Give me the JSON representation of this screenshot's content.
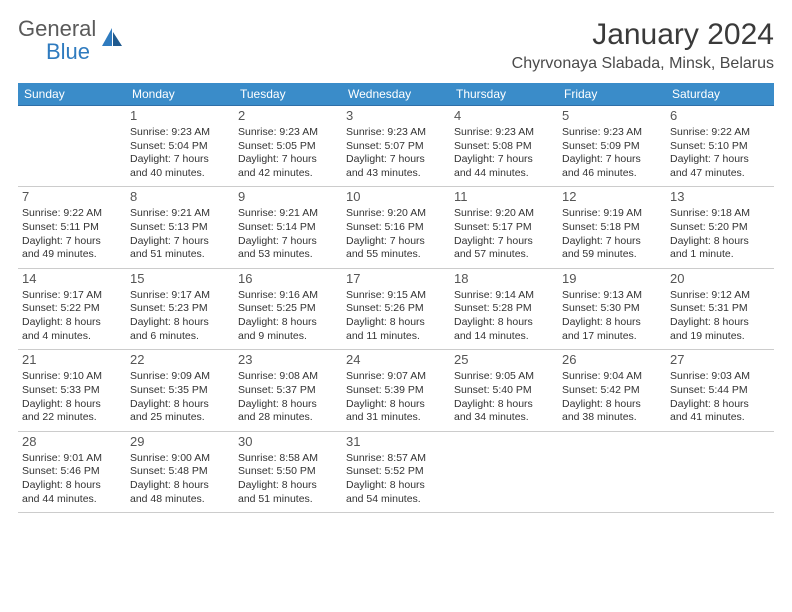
{
  "brand": {
    "part1": "General",
    "part2": "Blue"
  },
  "title": "January 2024",
  "location": "Chyrvonaya Slabada, Minsk, Belarus",
  "colors": {
    "header_bg": "#3a8cc9",
    "header_text": "#ffffff",
    "row_top_border": "#2f6fa8",
    "row_bottom_border": "#cccccc",
    "logo_gray": "#5a5a5a",
    "logo_blue": "#2f7bbf",
    "text": "#333333"
  },
  "weekdays": [
    "Sunday",
    "Monday",
    "Tuesday",
    "Wednesday",
    "Thursday",
    "Friday",
    "Saturday"
  ],
  "weeks": [
    [
      {
        "day": "",
        "sunrise": "",
        "sunset": "",
        "daylight1": "",
        "daylight2": ""
      },
      {
        "day": "1",
        "sunrise": "Sunrise: 9:23 AM",
        "sunset": "Sunset: 5:04 PM",
        "daylight1": "Daylight: 7 hours",
        "daylight2": "and 40 minutes."
      },
      {
        "day": "2",
        "sunrise": "Sunrise: 9:23 AM",
        "sunset": "Sunset: 5:05 PM",
        "daylight1": "Daylight: 7 hours",
        "daylight2": "and 42 minutes."
      },
      {
        "day": "3",
        "sunrise": "Sunrise: 9:23 AM",
        "sunset": "Sunset: 5:07 PM",
        "daylight1": "Daylight: 7 hours",
        "daylight2": "and 43 minutes."
      },
      {
        "day": "4",
        "sunrise": "Sunrise: 9:23 AM",
        "sunset": "Sunset: 5:08 PM",
        "daylight1": "Daylight: 7 hours",
        "daylight2": "and 44 minutes."
      },
      {
        "day": "5",
        "sunrise": "Sunrise: 9:23 AM",
        "sunset": "Sunset: 5:09 PM",
        "daylight1": "Daylight: 7 hours",
        "daylight2": "and 46 minutes."
      },
      {
        "day": "6",
        "sunrise": "Sunrise: 9:22 AM",
        "sunset": "Sunset: 5:10 PM",
        "daylight1": "Daylight: 7 hours",
        "daylight2": "and 47 minutes."
      }
    ],
    [
      {
        "day": "7",
        "sunrise": "Sunrise: 9:22 AM",
        "sunset": "Sunset: 5:11 PM",
        "daylight1": "Daylight: 7 hours",
        "daylight2": "and 49 minutes."
      },
      {
        "day": "8",
        "sunrise": "Sunrise: 9:21 AM",
        "sunset": "Sunset: 5:13 PM",
        "daylight1": "Daylight: 7 hours",
        "daylight2": "and 51 minutes."
      },
      {
        "day": "9",
        "sunrise": "Sunrise: 9:21 AM",
        "sunset": "Sunset: 5:14 PM",
        "daylight1": "Daylight: 7 hours",
        "daylight2": "and 53 minutes."
      },
      {
        "day": "10",
        "sunrise": "Sunrise: 9:20 AM",
        "sunset": "Sunset: 5:16 PM",
        "daylight1": "Daylight: 7 hours",
        "daylight2": "and 55 minutes."
      },
      {
        "day": "11",
        "sunrise": "Sunrise: 9:20 AM",
        "sunset": "Sunset: 5:17 PM",
        "daylight1": "Daylight: 7 hours",
        "daylight2": "and 57 minutes."
      },
      {
        "day": "12",
        "sunrise": "Sunrise: 9:19 AM",
        "sunset": "Sunset: 5:18 PM",
        "daylight1": "Daylight: 7 hours",
        "daylight2": "and 59 minutes."
      },
      {
        "day": "13",
        "sunrise": "Sunrise: 9:18 AM",
        "sunset": "Sunset: 5:20 PM",
        "daylight1": "Daylight: 8 hours",
        "daylight2": "and 1 minute."
      }
    ],
    [
      {
        "day": "14",
        "sunrise": "Sunrise: 9:17 AM",
        "sunset": "Sunset: 5:22 PM",
        "daylight1": "Daylight: 8 hours",
        "daylight2": "and 4 minutes."
      },
      {
        "day": "15",
        "sunrise": "Sunrise: 9:17 AM",
        "sunset": "Sunset: 5:23 PM",
        "daylight1": "Daylight: 8 hours",
        "daylight2": "and 6 minutes."
      },
      {
        "day": "16",
        "sunrise": "Sunrise: 9:16 AM",
        "sunset": "Sunset: 5:25 PM",
        "daylight1": "Daylight: 8 hours",
        "daylight2": "and 9 minutes."
      },
      {
        "day": "17",
        "sunrise": "Sunrise: 9:15 AM",
        "sunset": "Sunset: 5:26 PM",
        "daylight1": "Daylight: 8 hours",
        "daylight2": "and 11 minutes."
      },
      {
        "day": "18",
        "sunrise": "Sunrise: 9:14 AM",
        "sunset": "Sunset: 5:28 PM",
        "daylight1": "Daylight: 8 hours",
        "daylight2": "and 14 minutes."
      },
      {
        "day": "19",
        "sunrise": "Sunrise: 9:13 AM",
        "sunset": "Sunset: 5:30 PM",
        "daylight1": "Daylight: 8 hours",
        "daylight2": "and 17 minutes."
      },
      {
        "day": "20",
        "sunrise": "Sunrise: 9:12 AM",
        "sunset": "Sunset: 5:31 PM",
        "daylight1": "Daylight: 8 hours",
        "daylight2": "and 19 minutes."
      }
    ],
    [
      {
        "day": "21",
        "sunrise": "Sunrise: 9:10 AM",
        "sunset": "Sunset: 5:33 PM",
        "daylight1": "Daylight: 8 hours",
        "daylight2": "and 22 minutes."
      },
      {
        "day": "22",
        "sunrise": "Sunrise: 9:09 AM",
        "sunset": "Sunset: 5:35 PM",
        "daylight1": "Daylight: 8 hours",
        "daylight2": "and 25 minutes."
      },
      {
        "day": "23",
        "sunrise": "Sunrise: 9:08 AM",
        "sunset": "Sunset: 5:37 PM",
        "daylight1": "Daylight: 8 hours",
        "daylight2": "and 28 minutes."
      },
      {
        "day": "24",
        "sunrise": "Sunrise: 9:07 AM",
        "sunset": "Sunset: 5:39 PM",
        "daylight1": "Daylight: 8 hours",
        "daylight2": "and 31 minutes."
      },
      {
        "day": "25",
        "sunrise": "Sunrise: 9:05 AM",
        "sunset": "Sunset: 5:40 PM",
        "daylight1": "Daylight: 8 hours",
        "daylight2": "and 34 minutes."
      },
      {
        "day": "26",
        "sunrise": "Sunrise: 9:04 AM",
        "sunset": "Sunset: 5:42 PM",
        "daylight1": "Daylight: 8 hours",
        "daylight2": "and 38 minutes."
      },
      {
        "day": "27",
        "sunrise": "Sunrise: 9:03 AM",
        "sunset": "Sunset: 5:44 PM",
        "daylight1": "Daylight: 8 hours",
        "daylight2": "and 41 minutes."
      }
    ],
    [
      {
        "day": "28",
        "sunrise": "Sunrise: 9:01 AM",
        "sunset": "Sunset: 5:46 PM",
        "daylight1": "Daylight: 8 hours",
        "daylight2": "and 44 minutes."
      },
      {
        "day": "29",
        "sunrise": "Sunrise: 9:00 AM",
        "sunset": "Sunset: 5:48 PM",
        "daylight1": "Daylight: 8 hours",
        "daylight2": "and 48 minutes."
      },
      {
        "day": "30",
        "sunrise": "Sunrise: 8:58 AM",
        "sunset": "Sunset: 5:50 PM",
        "daylight1": "Daylight: 8 hours",
        "daylight2": "and 51 minutes."
      },
      {
        "day": "31",
        "sunrise": "Sunrise: 8:57 AM",
        "sunset": "Sunset: 5:52 PM",
        "daylight1": "Daylight: 8 hours",
        "daylight2": "and 54 minutes."
      },
      {
        "day": "",
        "sunrise": "",
        "sunset": "",
        "daylight1": "",
        "daylight2": ""
      },
      {
        "day": "",
        "sunrise": "",
        "sunset": "",
        "daylight1": "",
        "daylight2": ""
      },
      {
        "day": "",
        "sunrise": "",
        "sunset": "",
        "daylight1": "",
        "daylight2": ""
      }
    ]
  ]
}
